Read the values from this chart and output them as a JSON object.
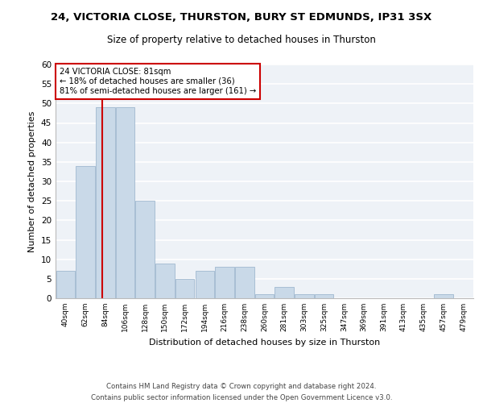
{
  "title1": "24, VICTORIA CLOSE, THURSTON, BURY ST EDMUNDS, IP31 3SX",
  "title2": "Size of property relative to detached houses in Thurston",
  "xlabel": "Distribution of detached houses by size in Thurston",
  "ylabel": "Number of detached properties",
  "bin_labels": [
    "40sqm",
    "62sqm",
    "84sqm",
    "106sqm",
    "128sqm",
    "150sqm",
    "172sqm",
    "194sqm",
    "216sqm",
    "238sqm",
    "260sqm",
    "281sqm",
    "303sqm",
    "325sqm",
    "347sqm",
    "369sqm",
    "391sqm",
    "413sqm",
    "435sqm",
    "457sqm",
    "479sqm"
  ],
  "values": [
    7,
    34,
    49,
    49,
    25,
    9,
    5,
    7,
    8,
    8,
    1,
    3,
    1,
    1,
    0,
    0,
    0,
    0,
    0,
    1,
    0
  ],
  "bar_color": "#c9d9e8",
  "bar_edge_color": "#a0b8cf",
  "vline_color": "#cc0000",
  "annotation_box_text": "24 VICTORIA CLOSE: 81sqm\n← 18% of detached houses are smaller (36)\n81% of semi-detached houses are larger (161) →",
  "annotation_box_color": "#cc0000",
  "ylim": [
    0,
    60
  ],
  "yticks": [
    0,
    5,
    10,
    15,
    20,
    25,
    30,
    35,
    40,
    45,
    50,
    55,
    60
  ],
  "footer": "Contains HM Land Registry data © Crown copyright and database right 2024.\nContains public sector information licensed under the Open Government Licence v3.0.",
  "bg_color": "#eef2f7",
  "grid_color": "#ffffff",
  "title1_fontsize": 9.5,
  "title2_fontsize": 8.5
}
